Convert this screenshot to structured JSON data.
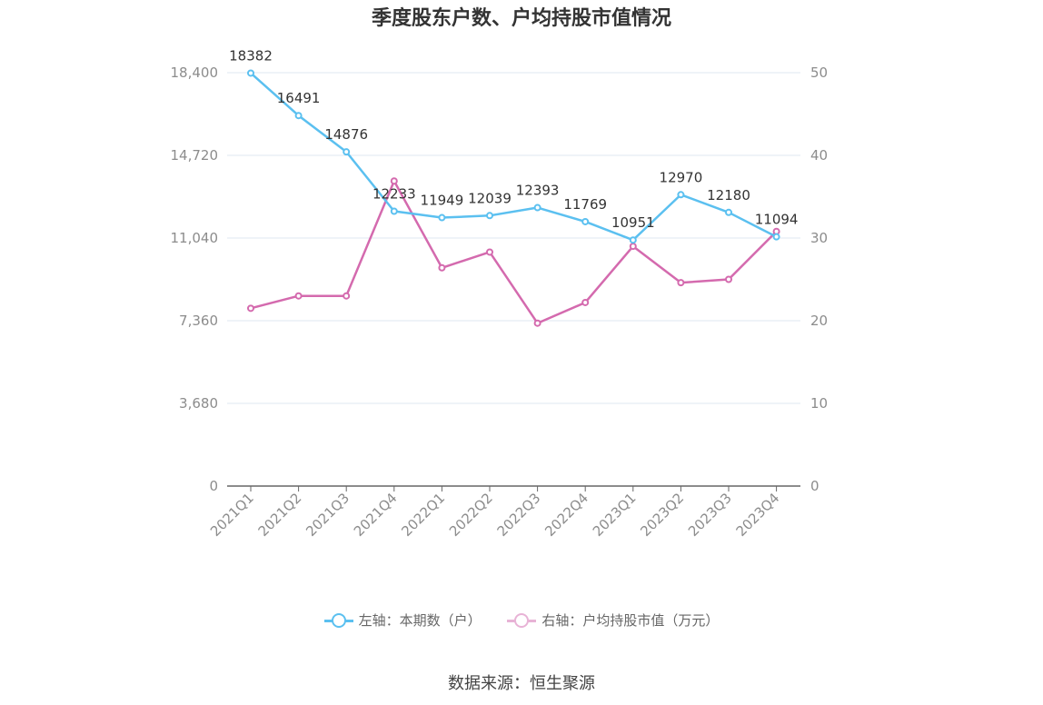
{
  "title": "季度股东户数、户均持股市值情况",
  "source": "数据来源：恒生聚源",
  "legend": {
    "left": "左轴：本期数（户）",
    "right": "右轴：户均持股市值（万元）"
  },
  "colors": {
    "left_series": "#5bc0f0",
    "right_series": "#d46aae",
    "grid": "#dfe7f1",
    "axis": "#666666"
  },
  "chart_data": {
    "type": "line",
    "title": "季度股东户数、户均持股市值情况",
    "categories": [
      "2021Q1",
      "2021Q2",
      "2021Q3",
      "2021Q4",
      "2022Q1",
      "2022Q2",
      "2022Q3",
      "2022Q4",
      "2023Q1",
      "2023Q2",
      "2023Q3",
      "2023Q4"
    ],
    "left_axis": {
      "ylim": [
        0,
        18400
      ],
      "ticks": [
        "0",
        "3,680",
        "7,360",
        "11,040",
        "14,720",
        "18,400"
      ]
    },
    "right_axis": {
      "ylim": [
        0,
        50
      ],
      "ticks": [
        "0",
        "10",
        "20",
        "30",
        "40",
        "50"
      ]
    },
    "series": [
      {
        "name": "左轴：本期数（户）",
        "axis": "left",
        "values": [
          18382,
          16491,
          14876,
          12233,
          11949,
          12039,
          12393,
          11769,
          10951,
          12970,
          12180,
          11094
        ],
        "labels": [
          "18382",
          "16491",
          "14876",
          "12233",
          "11949",
          "12039",
          "12393",
          "11769",
          "10951",
          "12970",
          "12180",
          "11094"
        ]
      },
      {
        "name": "右轴：户均持股市值（万元）",
        "axis": "right",
        "values": [
          21.5,
          23.0,
          23.0,
          36.9,
          26.4,
          28.3,
          19.7,
          22.2,
          29.0,
          24.6,
          25.0,
          30.8
        ]
      }
    ],
    "grid": true,
    "legend_position": "bottom"
  }
}
